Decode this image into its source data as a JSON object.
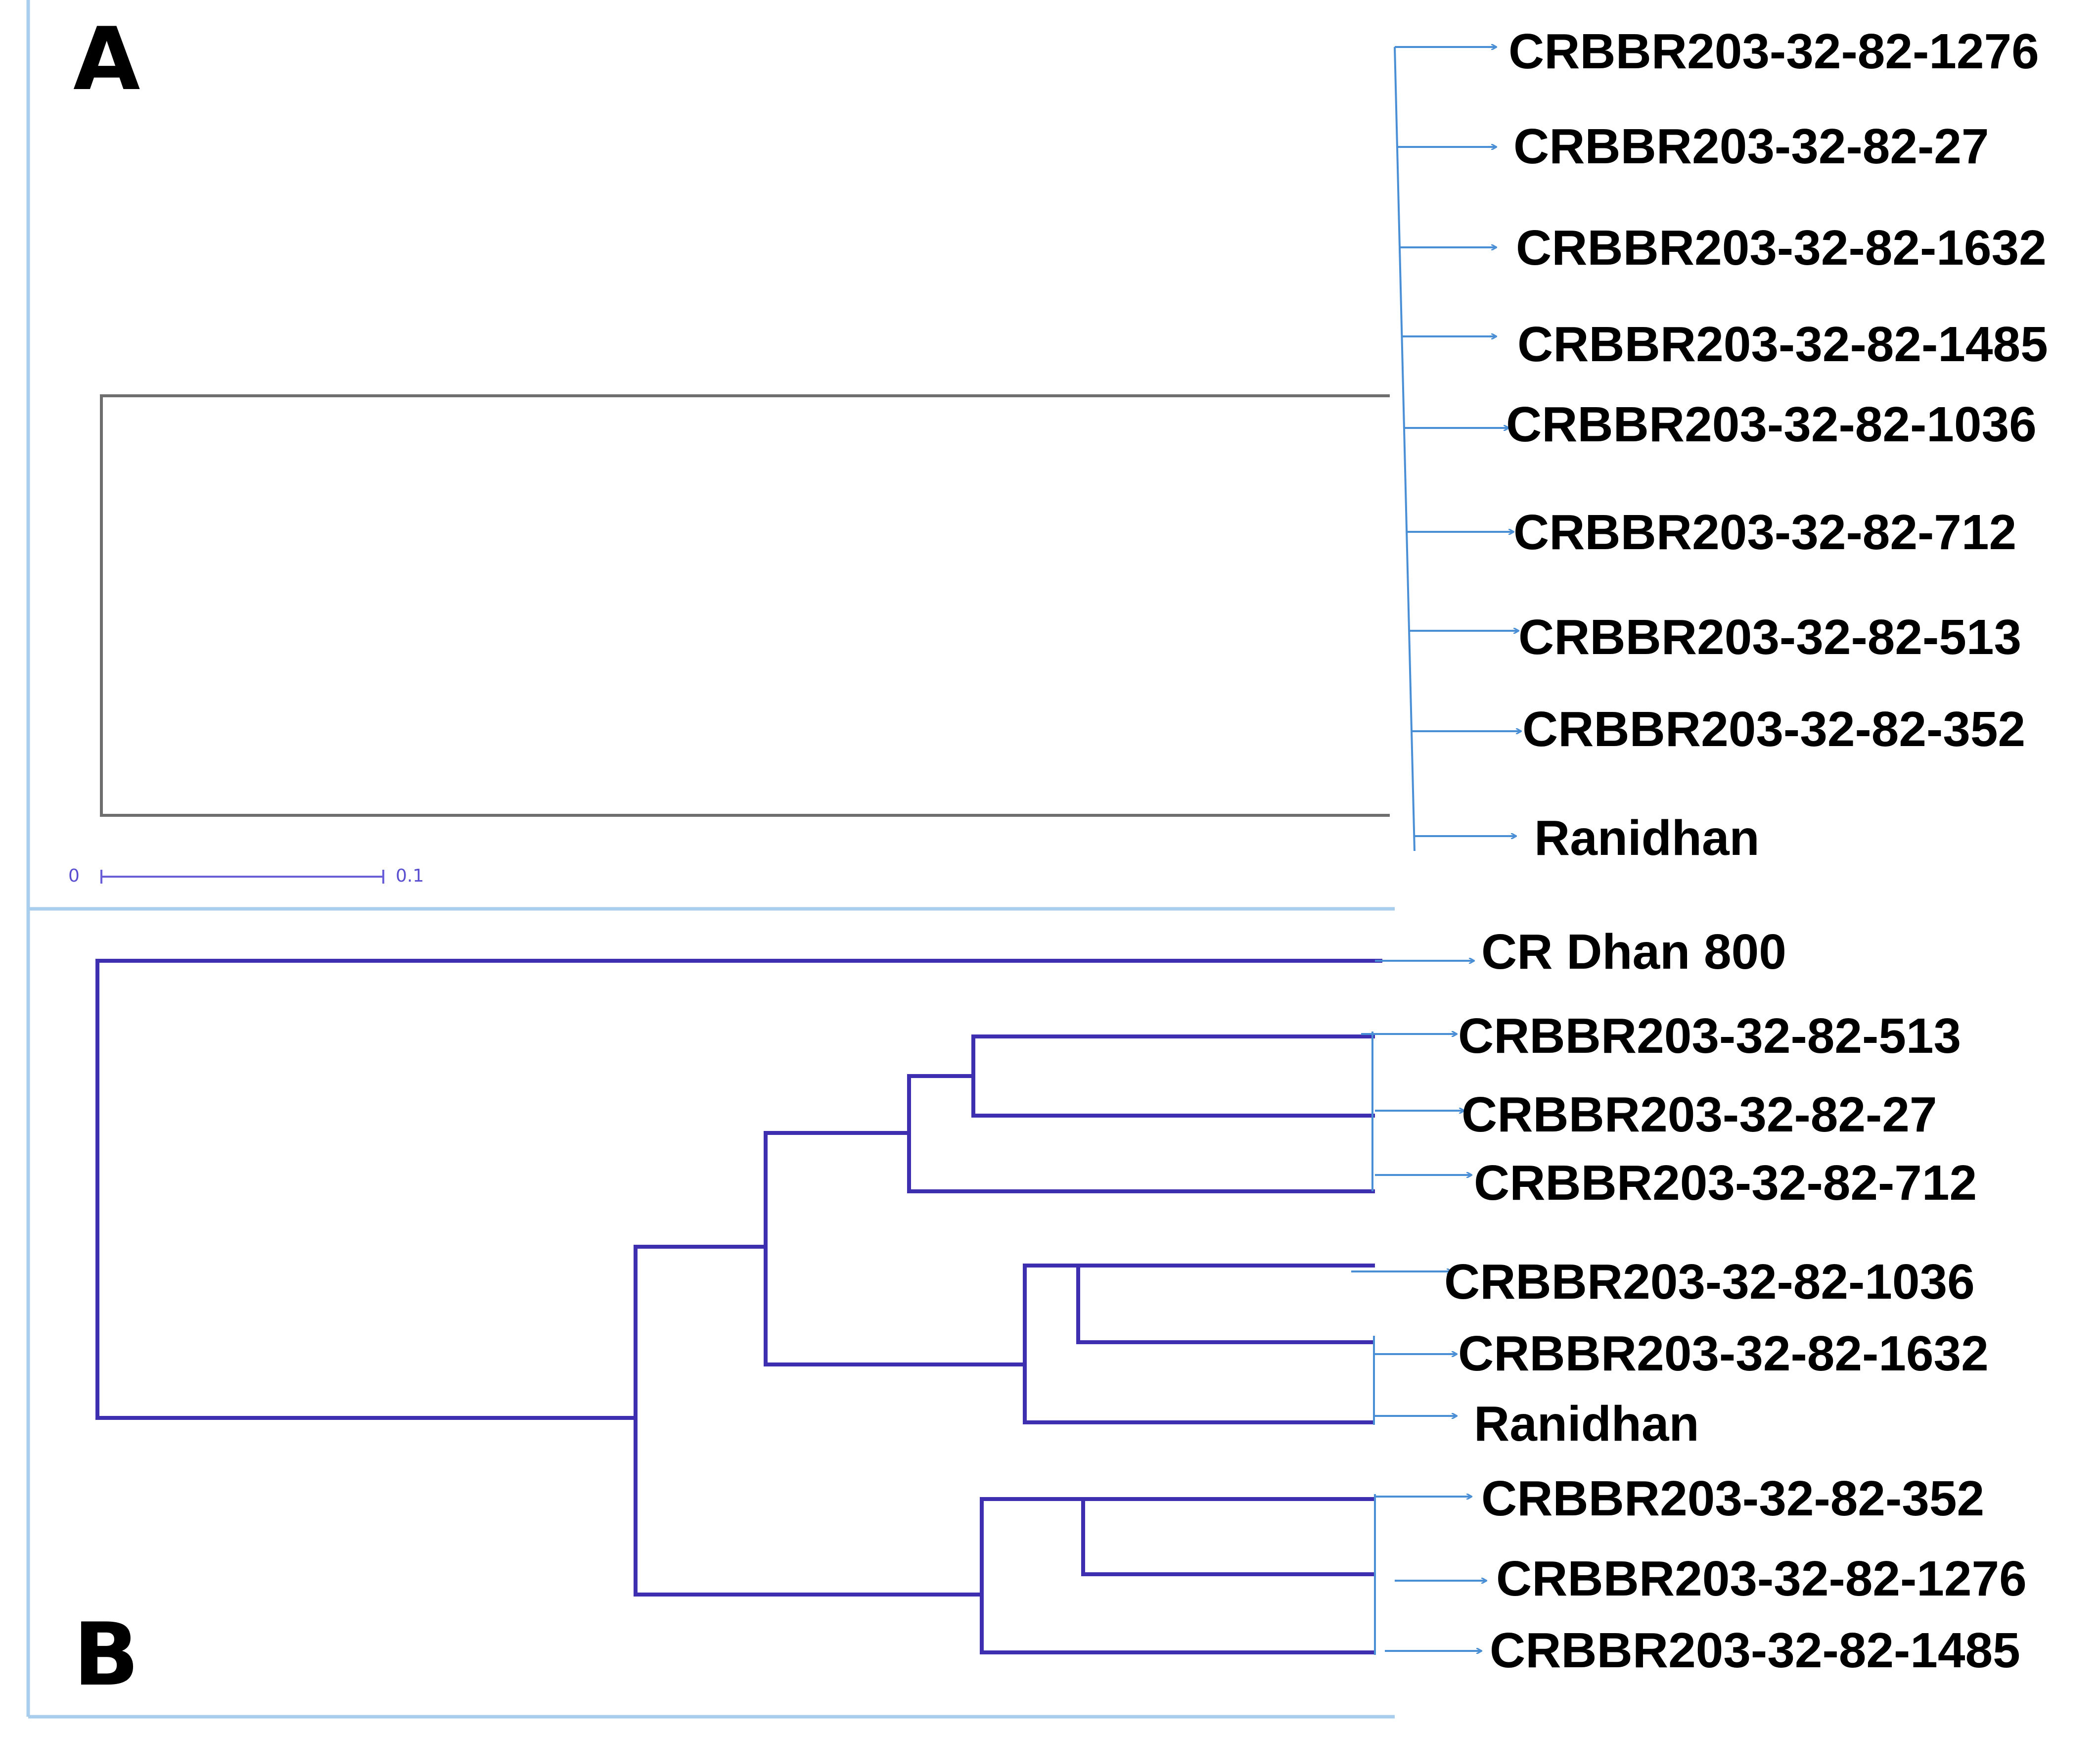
{
  "panels": {
    "a": {
      "letter": "A",
      "leaves": [
        "CRBBR203-32-82-1276",
        "CRBBR203-32-82-27",
        "CRBBR203-32-82-1632",
        "CRBBR203-32-82-1485",
        "CRBBR203-32-82-1036",
        "CRBBR203-32-82-712",
        "CRBBR203-32-82-513",
        "CRBBR203-32-82-352",
        "Ranidhan"
      ],
      "scale": {
        "start": "0",
        "end": "0.1"
      }
    },
    "b": {
      "letter": "B",
      "leaves": [
        "CR Dhan 800",
        "CRBBR203-32-82-513",
        "CRBBR203-32-82-27",
        "CRBBR203-32-82-712",
        "CRBBR203-32-82-1036",
        "CRBBR203-32-82-1632",
        "Ranidhan",
        "CRBBR203-32-82-352",
        "CRBBR203-32-82-1276",
        "CRBBR203-32-82-1485"
      ]
    }
  },
  "colors": {
    "tree_a": "#6e6e6e",
    "tree_b": "#3d2fb0",
    "arrows": "#4a8fd6",
    "frame": "#a9cdec",
    "scale": "#6a5fd8"
  }
}
